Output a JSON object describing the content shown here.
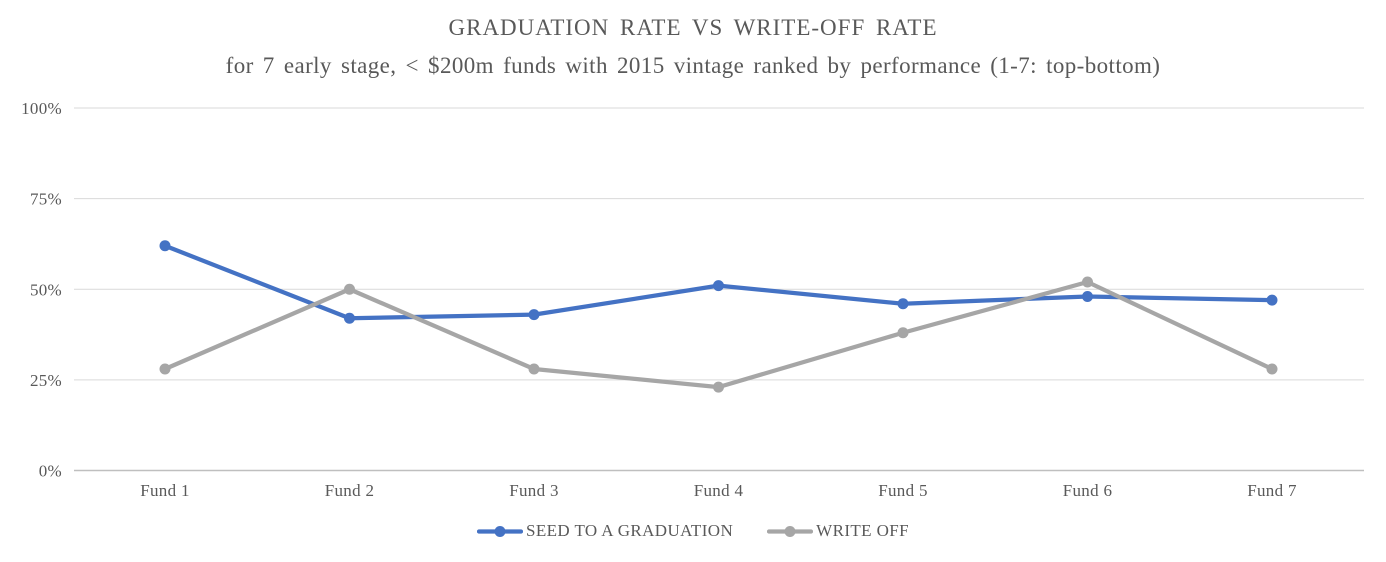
{
  "chart_data": {
    "type": "line",
    "title": "GRADUATION RATE VS WRITE-OFF RATE",
    "subtitle": "for 7 early stage, < $200m funds with 2015 vintage ranked by performance (1-7: top-bottom)",
    "categories": [
      "Fund 1",
      "Fund 2",
      "Fund 3",
      "Fund 4",
      "Fund 5",
      "Fund 6",
      "Fund 7"
    ],
    "series": [
      {
        "name": "SEED TO A GRADUATION",
        "color": "#4472C4",
        "marker": "circle",
        "values": [
          62,
          42,
          43,
          51,
          46,
          48,
          47
        ]
      },
      {
        "name": "WRITE OFF",
        "color": "#A6A6A6",
        "marker": "circle",
        "values": [
          28,
          50,
          28,
          23,
          38,
          52,
          28
        ]
      }
    ],
    "xlabel": "",
    "ylabel": "",
    "ylim": [
      0,
      100
    ],
    "y_ticks": [
      {
        "value": 0,
        "label": "0%"
      },
      {
        "value": 25,
        "label": "25%"
      },
      {
        "value": 50,
        "label": "50%"
      },
      {
        "value": 75,
        "label": "75%"
      },
      {
        "value": 100,
        "label": "100%"
      }
    ],
    "grid": true,
    "legend_position": "bottom",
    "style": {
      "text_color": "#595959",
      "gridline_color": "#D9D9D9",
      "axis_line_color": "#BFBFBF",
      "background": "#FFFFFF"
    }
  }
}
